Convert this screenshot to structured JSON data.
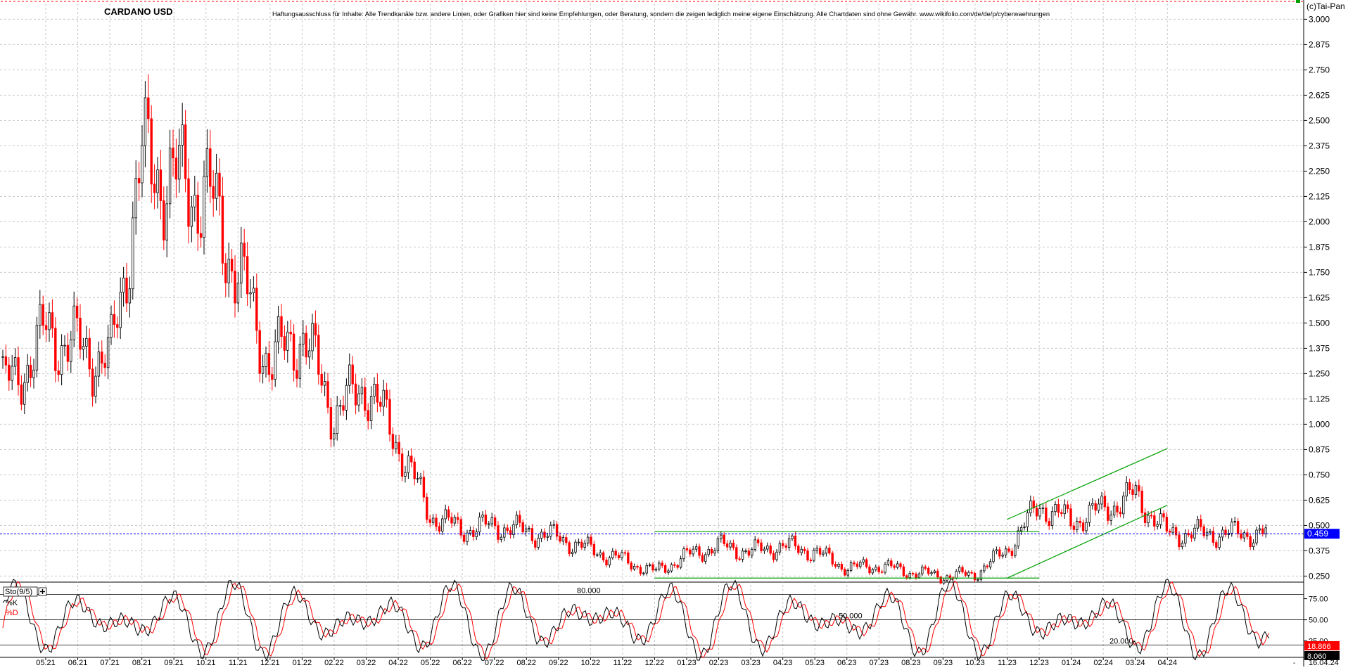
{
  "title": "CARDANO USD",
  "disclaimer": "Haftungsausschluss für Inhalte: Alle Trendkanäle bzw. andere Linien, oder Grafiken hier sind keine Empfehlungen, oder Beratung, sondern die zeigen lediglich meine eigene Einschätzung. Alle Chartdaten sind ohne Gewähr.  www.wikifolio.com/de/de/p/cyberwaehrungen",
  "copyright": "(c)Tai-Pan",
  "last_date": "16.04.24",
  "colors": {
    "up": "#000000",
    "down": "#ff0000",
    "trend": "#00a000",
    "price_marker": "#0000ff",
    "k_line": "#000000",
    "d_line": "#ff0000"
  },
  "chart_data": [
    {
      "type": "candlestick",
      "title": "CARDANO USD",
      "ylim": [
        0.2,
        3.05
      ],
      "y_ticks": [
        "3.000",
        "2.875",
        "2.750",
        "2.625",
        "2.500",
        "2.375",
        "2.250",
        "2.125",
        "2.000",
        "1.875",
        "1.750",
        "1.625",
        "1.500",
        "1.375",
        "1.250",
        "1.125",
        "1.000",
        "0.875",
        "0.750",
        "0.625",
        "0.500",
        "0.375",
        "0.250"
      ],
      "x_ticks": [
        "05.21",
        "06.21",
        "07.21",
        "08.21",
        "09.21",
        "10.21",
        "11.21",
        "12.21",
        "01.22",
        "02.22",
        "03.22",
        "04.22",
        "05.22",
        "06.22",
        "07.22",
        "08.22",
        "09.22",
        "10.22",
        "11.22",
        "12.22",
        "01.23",
        "02.23",
        "03.23",
        "04.23",
        "05.23",
        "06.23",
        "07.23",
        "08.23",
        "09.23",
        "10.23",
        "11.23",
        "12.23",
        "01.24",
        "02.24",
        "03.24",
        "04.24"
      ],
      "grid": true,
      "last_price": "0.459",
      "approx_close_by_month": [
        {
          "month": "04.21",
          "close": 1.2
        },
        {
          "month": "05.21",
          "close": 1.45
        },
        {
          "month": "06.21",
          "close": 1.38
        },
        {
          "month": "07.21",
          "close": 1.3
        },
        {
          "month": "08.21",
          "close": 2.3
        },
        {
          "month": "09.21",
          "close": 2.2
        },
        {
          "month": "10.21",
          "close": 2.15
        },
        {
          "month": "11.21",
          "close": 1.75
        },
        {
          "month": "12.21",
          "close": 1.3
        },
        {
          "month": "01.22",
          "close": 1.45
        },
        {
          "month": "02.22",
          "close": 1.05
        },
        {
          "month": "03.22",
          "close": 1.2
        },
        {
          "month": "04.22",
          "close": 0.9
        },
        {
          "month": "05.22",
          "close": 0.55
        },
        {
          "month": "06.22",
          "close": 0.48
        },
        {
          "month": "07.22",
          "close": 0.5
        },
        {
          "month": "08.22",
          "close": 0.47
        },
        {
          "month": "09.22",
          "close": 0.44
        },
        {
          "month": "10.22",
          "close": 0.38
        },
        {
          "month": "11.22",
          "close": 0.33
        },
        {
          "month": "12.22",
          "close": 0.27
        },
        {
          "month": "01.23",
          "close": 0.35
        },
        {
          "month": "02.23",
          "close": 0.4
        },
        {
          "month": "03.23",
          "close": 0.37
        },
        {
          "month": "04.23",
          "close": 0.4
        },
        {
          "month": "05.23",
          "close": 0.37
        },
        {
          "month": "06.23",
          "close": 0.29
        },
        {
          "month": "07.23",
          "close": 0.3
        },
        {
          "month": "08.23",
          "close": 0.27
        },
        {
          "month": "09.23",
          "close": 0.25
        },
        {
          "month": "10.23",
          "close": 0.26
        },
        {
          "month": "11.23",
          "close": 0.38
        },
        {
          "month": "12.23",
          "close": 0.6
        },
        {
          "month": "01.24",
          "close": 0.52
        },
        {
          "month": "02.24",
          "close": 0.58
        },
        {
          "month": "03.24",
          "close": 0.65
        },
        {
          "month": "04.24",
          "close": 0.46
        }
      ],
      "trend_lines": [
        {
          "from": [
            "12.22",
            0.47
          ],
          "to": [
            "12.23",
            0.47
          ]
        },
        {
          "from": [
            "12.22",
            0.24
          ],
          "to": [
            "12.23",
            0.24
          ]
        },
        {
          "from": [
            "11.23",
            0.53
          ],
          "to": [
            "04.24",
            0.88
          ]
        },
        {
          "from": [
            "11.23",
            0.24
          ],
          "to": [
            "04.24",
            0.6
          ]
        }
      ]
    },
    {
      "type": "line",
      "title": "Sto(9/5)",
      "series": [
        {
          "name": "%K"
        },
        {
          "name": "%D"
        }
      ],
      "ylim": [
        0,
        100
      ],
      "y_ticks": [
        "75.00",
        "50.00",
        "25.00"
      ],
      "levels": [
        {
          "value": 80,
          "label": "80.000"
        },
        {
          "value": 50,
          "label": "50.000"
        },
        {
          "value": 20,
          "label": "20.000"
        }
      ],
      "k_value": "8.060",
      "d_value": "18.866"
    }
  ]
}
